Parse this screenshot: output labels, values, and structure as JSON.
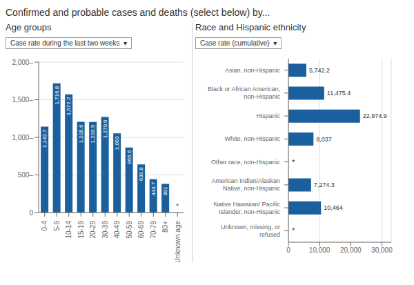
{
  "title": "Confirmed and probable cases and deaths (select below) by...",
  "chart_data": [
    {
      "type": "bar",
      "title": "Age groups",
      "subtitle": "Case rate during the last two weeks  ▾",
      "categories": [
        "0-4",
        "5-9",
        "10-14",
        "15-19",
        "20-29",
        "30-39",
        "40-49",
        "50-59",
        "60-69",
        "70-79",
        "80+",
        "Unknown age"
      ],
      "values": [
        1142.7,
        1716.8,
        1572.2,
        1205.6,
        1203.9,
        1270.9,
        1053,
        865.6,
        639.8,
        443.7,
        381,
        null
      ],
      "value_labels": [
        "1,142.7",
        "1,716.8",
        "1,572.2",
        "1,205.6",
        "1,203.9",
        "1,270.9",
        "1,053",
        "865.6",
        "639.8",
        "443.7",
        "381",
        "*"
      ],
      "data_labels": true,
      "color": "#1a5f9e",
      "ylim": [
        0,
        2000
      ],
      "yticks": [
        0,
        {
          "value": 500,
          "label": "500–"
        },
        {
          "value": 1000,
          "label": "1,000–"
        },
        {
          "value": 1500,
          "label": "1,500–"
        },
        {
          "value": 2000,
          "label": "2,000–"
        }
      ],
      "grid": true
    },
    {
      "type": "bar",
      "orientation": "horizontal",
      "title": "Race and Hispanic ethnicity",
      "subtitle": "Case rate (cumulative)  ▾",
      "categories": [
        "Asian, non-Hispanic",
        "Black or African American,\nnon-Hispanic",
        "Hispanic",
        "White, non-Hispanic",
        "Other race, non-Hispanic",
        "American Indian/Alaskan\nNative, non-Hispanic",
        "Native Hawaiian/ Pacific\nIslander, non-Hispanic",
        "Unknown, missing, or\nrefused"
      ],
      "values": [
        5742.2,
        11475.4,
        22974.9,
        8037,
        null,
        7274.3,
        10464,
        null
      ],
      "value_labels": [
        "5,742.2",
        "11,475.4",
        "22,974.9",
        "8,037",
        "*",
        "7,274.3",
        "10,464",
        "*"
      ],
      "data_labels": true,
      "color": "#1a5f9e",
      "xlim": [
        0,
        33000
      ],
      "xticks": [
        0,
        {
          "value": 10000,
          "label": "10,000"
        },
        {
          "value": 20000,
          "label": "20,000"
        },
        {
          "value": 30000,
          "label": "30,000"
        }
      ],
      "grid": true
    }
  ]
}
